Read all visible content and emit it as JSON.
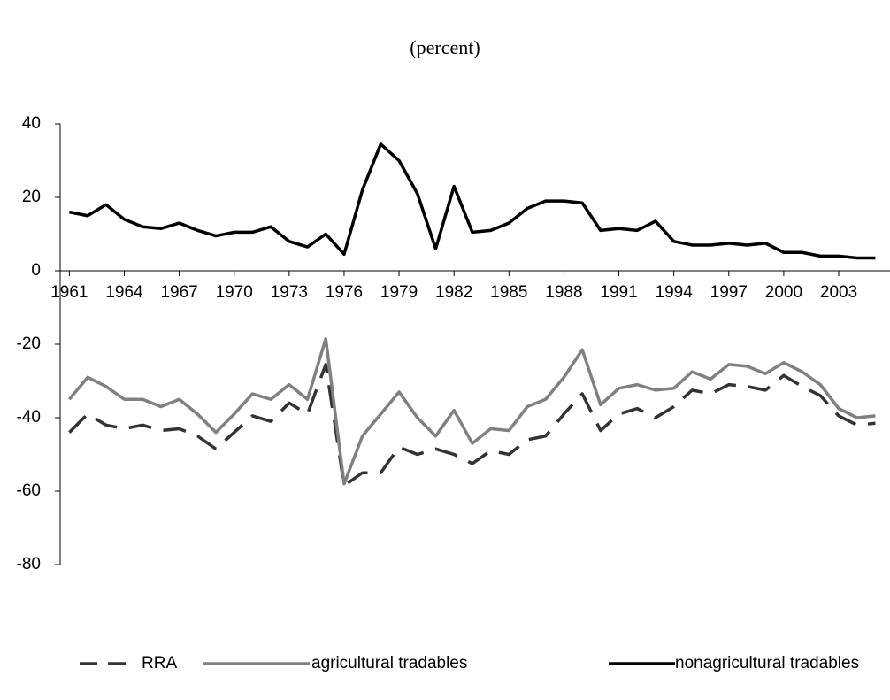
{
  "chart_data": {
    "type": "line",
    "title": "(percent)",
    "x": [
      1961,
      1962,
      1963,
      1964,
      1965,
      1966,
      1967,
      1968,
      1969,
      1970,
      1971,
      1972,
      1973,
      1974,
      1975,
      1976,
      1977,
      1978,
      1979,
      1980,
      1981,
      1982,
      1983,
      1984,
      1985,
      1986,
      1987,
      1988,
      1989,
      1990,
      1991,
      1992,
      1993,
      1994,
      1995,
      1996,
      1997,
      1998,
      1999,
      2000,
      2001,
      2002,
      2003,
      2004,
      2005
    ],
    "series": [
      {
        "name": "RRA",
        "color": "#333333",
        "dash": true,
        "values": [
          -44,
          -39,
          -42,
          -43,
          -42,
          -43.5,
          -43,
          -45,
          -48.5,
          -44,
          -39.5,
          -41,
          -36,
          -39,
          -25.5,
          -58.5,
          -55,
          -55,
          -48,
          -50,
          -48.5,
          -50,
          -52.5,
          -49,
          -50,
          -46,
          -45,
          -39,
          -33.5,
          -43.5,
          -39,
          -37.5,
          -40,
          -37,
          -32.5,
          -33.5,
          -31,
          -31.5,
          -32.5,
          -28.5,
          -31.5,
          -34,
          -39.5,
          -42,
          -41.5
        ]
      },
      {
        "name": "agricultural tradables",
        "color": "#808080",
        "dash": false,
        "values": [
          -35,
          -29,
          -31.5,
          -35,
          -35,
          -37,
          -35,
          -39,
          -44,
          -39,
          -33.5,
          -35,
          -31,
          -35,
          -18.5,
          -58,
          -45,
          -39,
          -33,
          -40,
          -45,
          -38,
          -47,
          -43,
          -43.5,
          -37,
          -35,
          -29,
          -21.5,
          -36.5,
          -32,
          -31,
          -32.5,
          -32,
          -27.5,
          -29.5,
          -25.5,
          -26,
          -28,
          -25,
          -27.5,
          -31,
          -37.5,
          -40,
          -39.5
        ]
      },
      {
        "name": "nonagricultural tradables",
        "color": "#000000",
        "dash": false,
        "values": [
          16,
          15,
          18,
          14,
          12,
          11.5,
          13,
          11,
          9.5,
          10.5,
          10.5,
          12,
          8,
          6.5,
          10,
          4.5,
          22,
          34.5,
          30,
          21,
          6,
          23,
          10.5,
          11,
          13,
          17,
          19,
          19,
          18.5,
          11,
          11.5,
          11,
          13.5,
          8,
          7,
          7,
          7.5,
          7,
          7.5,
          5,
          5,
          4,
          4,
          3.5,
          3.5
        ]
      }
    ],
    "xlim": [
      1960.5,
      2005.8
    ],
    "xticks": [
      1961,
      1964,
      1967,
      1970,
      1973,
      1976,
      1979,
      1982,
      1985,
      1988,
      1991,
      1994,
      1997,
      2000,
      2003
    ],
    "ylim": [
      -80,
      40
    ],
    "yticks": [
      40,
      20,
      0,
      -20,
      -40,
      -60,
      -80
    ]
  }
}
